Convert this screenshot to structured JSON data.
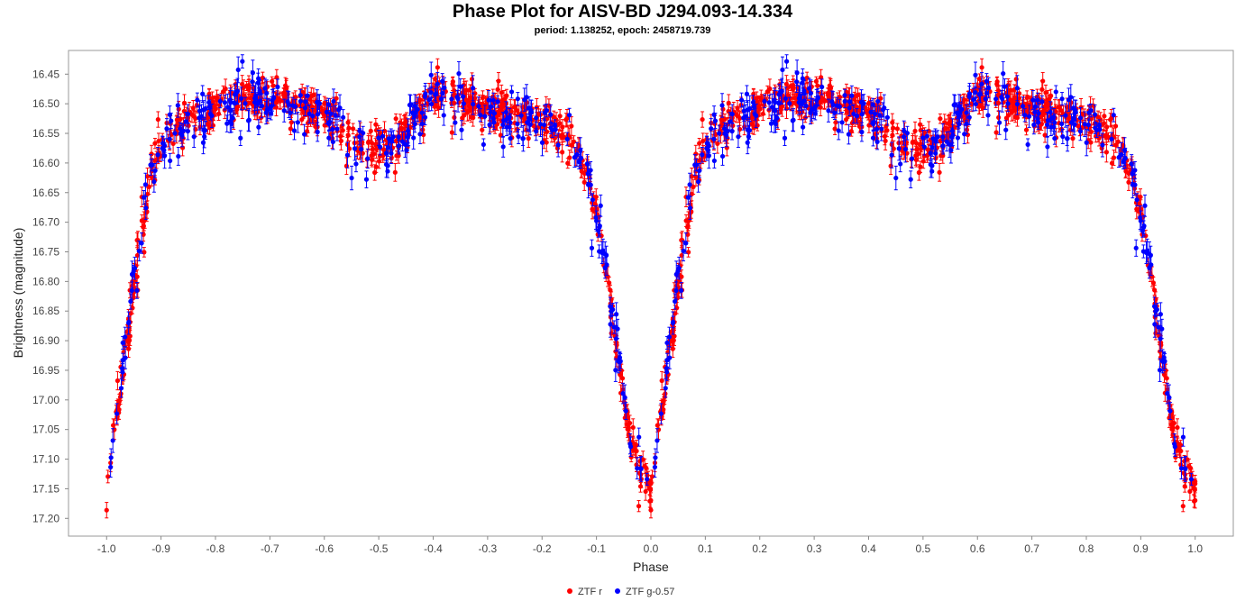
{
  "chart_data": {
    "type": "scatter",
    "title": "Phase Plot for AISV-BD J294.093-14.334",
    "subtitle": "period: 1.138252, epoch: 2458719.739",
    "xlabel": "Phase",
    "ylabel": "Brightness (magnitude)",
    "xlim": [
      -1.07,
      1.07
    ],
    "ylim": [
      16.41,
      17.23
    ],
    "y_inverted": true,
    "x_ticks": [
      "-1.0",
      "-0.9",
      "-0.8",
      "-0.7",
      "-0.6",
      "-0.5",
      "-0.4",
      "-0.3",
      "-0.2",
      "-0.1",
      "0.0",
      "0.1",
      "0.2",
      "0.3",
      "0.4",
      "0.5",
      "0.6",
      "0.7",
      "0.8",
      "0.9",
      "1.0"
    ],
    "y_ticks": [
      "16.45",
      "16.50",
      "16.55",
      "16.60",
      "16.65",
      "16.70",
      "16.75",
      "16.80",
      "16.85",
      "16.90",
      "16.95",
      "17.00",
      "17.05",
      "17.10",
      "17.15",
      "17.20"
    ],
    "grid": false,
    "legend_position": "bottom-center",
    "light_curve_model": {
      "phase": [
        0.0,
        0.02,
        0.04,
        0.06,
        0.08,
        0.1,
        0.13,
        0.17,
        0.22,
        0.28,
        0.33,
        0.38,
        0.42,
        0.45,
        0.48,
        0.52,
        0.55,
        0.58,
        0.6,
        0.62,
        0.65,
        0.7,
        0.75,
        0.8,
        0.85,
        0.88,
        0.9,
        0.92,
        0.94,
        0.96,
        0.98,
        1.0
      ],
      "magnitude": [
        17.15,
        17.02,
        16.88,
        16.74,
        16.62,
        16.57,
        16.54,
        16.52,
        16.5,
        16.49,
        16.5,
        16.51,
        16.53,
        16.56,
        16.58,
        16.57,
        16.55,
        16.51,
        16.48,
        16.48,
        16.5,
        16.51,
        16.52,
        16.52,
        16.56,
        16.61,
        16.68,
        16.8,
        16.93,
        17.05,
        17.12,
        17.15
      ]
    },
    "series": [
      {
        "name": "ZTF r",
        "color": "#ff0000",
        "n_points": 700,
        "scatter": 0.018,
        "error_bar": 0.012,
        "seed": 11
      },
      {
        "name": "ZTF g-0.57",
        "color": "#0000ff",
        "n_points": 320,
        "scatter": 0.022,
        "error_bar": 0.016,
        "seed": 29
      }
    ]
  }
}
